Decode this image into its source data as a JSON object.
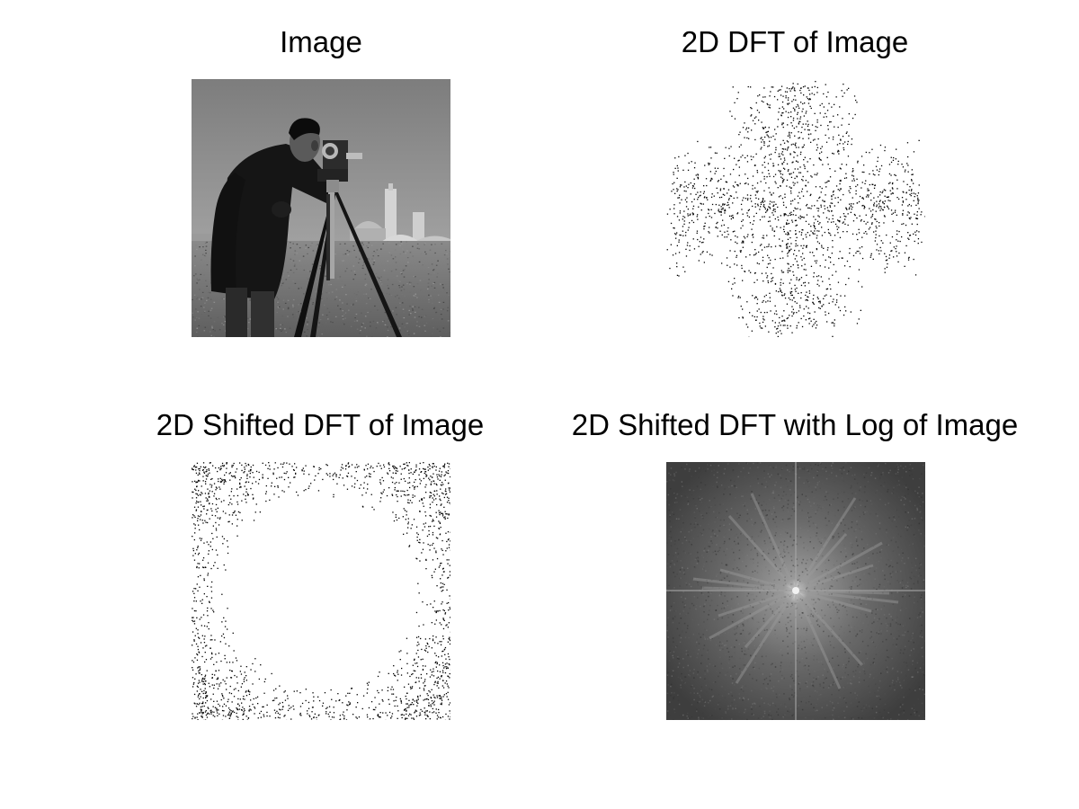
{
  "figure": {
    "background": "#ffffff",
    "panels": [
      {
        "id": "image",
        "title": "Image",
        "content": "grayscale photograph of a cameraman with a tripod-mounted film camera on a grassy field, buildings in the background"
      },
      {
        "id": "dft",
        "title": "2D DFT of Image",
        "content": "binary-thresholded 2D DFT magnitude: speckled dark cross-shaped cloud on white"
      },
      {
        "id": "shifted-dft",
        "title": "2D Shifted DFT of Image",
        "content": "binary-thresholded shifted DFT: white circular center with dark speckled corners"
      },
      {
        "id": "log-shifted-dft",
        "title": "2D Shifted DFT with Log of Image",
        "content": "gray log-magnitude spectrum, bright center with radial streaks and a central cross"
      }
    ],
    "colors": {
      "ink": "#000000",
      "sky": "#8a8a8a",
      "grass": "#6e6e6e",
      "spectrum_bg": "#4a4a4a"
    }
  }
}
